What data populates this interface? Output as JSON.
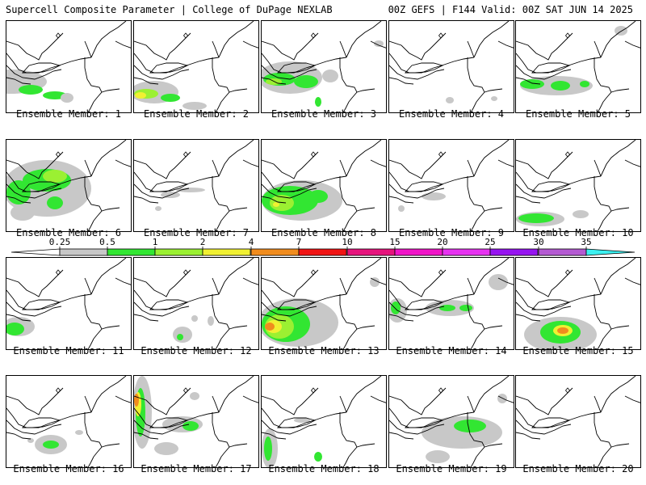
{
  "header": {
    "left": "Supercell Composite Parameter | College of DuPage NEXLAB",
    "right": "00Z GEFS | F144 Valid: 00Z SAT JUN 14 2025"
  },
  "colorbar": {
    "ticks": [
      "0.25",
      "0.5",
      "1",
      "2",
      "4",
      "7",
      "10",
      "15",
      "20",
      "25",
      "30",
      "35"
    ],
    "colors": [
      "#c8c8c8",
      "#32e632",
      "#9bf032",
      "#f0f032",
      "#f08c1e",
      "#f01414",
      "#e6147d",
      "#f014c8",
      "#e632f0",
      "#9614f0",
      "#b45ad2",
      "#3cf0f0"
    ]
  },
  "panels": [
    {
      "label": "Ensemble Member: 1",
      "blobs": [
        {
          "c": 0,
          "x": 5,
          "y": 75,
          "rx": 45,
          "ry": 15
        },
        {
          "c": 1,
          "x": 30,
          "y": 85,
          "rx": 15,
          "ry": 6
        },
        {
          "c": 1,
          "x": 60,
          "y": 92,
          "rx": 15,
          "ry": 5
        },
        {
          "c": 0,
          "x": 75,
          "y": 95,
          "rx": 8,
          "ry": 6
        }
      ]
    },
    {
      "label": "Ensemble Member: 2",
      "blobs": [
        {
          "c": 0,
          "x": 25,
          "y": 88,
          "rx": 30,
          "ry": 14
        },
        {
          "c": 2,
          "x": 15,
          "y": 90,
          "rx": 15,
          "ry": 6
        },
        {
          "c": 3,
          "x": 8,
          "y": 92,
          "rx": 7,
          "ry": 4
        },
        {
          "c": 1,
          "x": 45,
          "y": 95,
          "rx": 12,
          "ry": 5
        },
        {
          "c": 0,
          "x": 75,
          "y": 105,
          "rx": 15,
          "ry": 5
        }
      ]
    },
    {
      "label": "Ensemble Member: 3",
      "blobs": [
        {
          "c": 0,
          "x": 35,
          "y": 70,
          "rx": 40,
          "ry": 20
        },
        {
          "c": 1,
          "x": 22,
          "y": 72,
          "rx": 20,
          "ry": 8
        },
        {
          "c": 2,
          "x": 15,
          "y": 75,
          "rx": 10,
          "ry": 4
        },
        {
          "c": 1,
          "x": 55,
          "y": 75,
          "rx": 15,
          "ry": 8
        },
        {
          "c": 0,
          "x": 85,
          "y": 68,
          "rx": 10,
          "ry": 8
        },
        {
          "c": 1,
          "x": 70,
          "y": 100,
          "rx": 4,
          "ry": 6
        },
        {
          "c": 0,
          "x": 145,
          "y": 28,
          "rx": 6,
          "ry": 4
        }
      ]
    },
    {
      "label": "Ensemble Member: 4",
      "blobs": [
        {
          "c": 0,
          "x": 75,
          "y": 98,
          "rx": 5,
          "ry": 4
        },
        {
          "c": 0,
          "x": 130,
          "y": 96,
          "rx": 4,
          "ry": 3
        }
      ]
    },
    {
      "label": "Ensemble Member: 5",
      "blobs": [
        {
          "c": 0,
          "x": 50,
          "y": 80,
          "rx": 45,
          "ry": 12
        },
        {
          "c": 1,
          "x": 20,
          "y": 78,
          "rx": 15,
          "ry": 6
        },
        {
          "c": 1,
          "x": 55,
          "y": 80,
          "rx": 12,
          "ry": 6
        },
        {
          "c": 1,
          "x": 85,
          "y": 78,
          "rx": 6,
          "ry": 4
        },
        {
          "c": 0,
          "x": 130,
          "y": 12,
          "rx": 8,
          "ry": 6
        }
      ]
    },
    {
      "label": "Ensemble Member: 6",
      "blobs": [
        {
          "c": 0,
          "x": 50,
          "y": 60,
          "rx": 55,
          "ry": 35
        },
        {
          "c": 1,
          "x": 15,
          "y": 65,
          "rx": 15,
          "ry": 15
        },
        {
          "c": 1,
          "x": 50,
          "y": 50,
          "rx": 30,
          "ry": 14
        },
        {
          "c": 2,
          "x": 60,
          "y": 45,
          "rx": 15,
          "ry": 8
        },
        {
          "c": 1,
          "x": 60,
          "y": 78,
          "rx": 10,
          "ry": 8
        },
        {
          "c": 0,
          "x": 20,
          "y": 90,
          "rx": 15,
          "ry": 10
        }
      ]
    },
    {
      "label": "Ensemble Member: 7",
      "blobs": [
        {
          "c": 0,
          "x": 30,
          "y": 85,
          "rx": 4,
          "ry": 3
        },
        {
          "c": 0,
          "x": 45,
          "y": 68,
          "rx": 12,
          "ry": 4
        },
        {
          "c": 0,
          "x": 70,
          "y": 62,
          "rx": 18,
          "ry": 3
        }
      ]
    },
    {
      "label": "Ensemble Member: 8",
      "blobs": [
        {
          "c": 0,
          "x": 50,
          "y": 75,
          "rx": 50,
          "ry": 25
        },
        {
          "c": 1,
          "x": 35,
          "y": 75,
          "rx": 35,
          "ry": 18
        },
        {
          "c": 2,
          "x": 25,
          "y": 78,
          "rx": 15,
          "ry": 10
        },
        {
          "c": 3,
          "x": 18,
          "y": 80,
          "rx": 4,
          "ry": 3
        },
        {
          "c": 1,
          "x": 70,
          "y": 70,
          "rx": 12,
          "ry": 8
        }
      ]
    },
    {
      "label": "Ensemble Member: 9",
      "blobs": [
        {
          "c": 0,
          "x": 15,
          "y": 85,
          "rx": 4,
          "ry": 4
        },
        {
          "c": 0,
          "x": 55,
          "y": 70,
          "rx": 15,
          "ry": 5
        }
      ]
    },
    {
      "label": "Ensemble Member: 10",
      "blobs": [
        {
          "c": 0,
          "x": 30,
          "y": 98,
          "rx": 30,
          "ry": 9
        },
        {
          "c": 1,
          "x": 25,
          "y": 97,
          "rx": 22,
          "ry": 6
        },
        {
          "c": 0,
          "x": 80,
          "y": 92,
          "rx": 10,
          "ry": 5
        }
      ]
    },
    {
      "label": "Ensemble Member: 11",
      "blobs": [
        {
          "c": 0,
          "x": 15,
          "y": 85,
          "rx": 20,
          "ry": 12
        },
        {
          "c": 1,
          "x": 10,
          "y": 88,
          "rx": 12,
          "ry": 8
        }
      ]
    },
    {
      "label": "Ensemble Member: 12",
      "blobs": [
        {
          "c": 0,
          "x": 60,
          "y": 95,
          "rx": 12,
          "ry": 10
        },
        {
          "c": 1,
          "x": 57,
          "y": 98,
          "rx": 4,
          "ry": 4
        },
        {
          "c": 0,
          "x": 95,
          "y": 78,
          "rx": 4,
          "ry": 6
        },
        {
          "c": 0,
          "x": 75,
          "y": 75,
          "rx": 4,
          "ry": 4
        }
      ]
    },
    {
      "label": "Ensemble Member: 13",
      "blobs": [
        {
          "c": 0,
          "x": 45,
          "y": 80,
          "rx": 50,
          "ry": 30
        },
        {
          "c": 1,
          "x": 30,
          "y": 82,
          "rx": 30,
          "ry": 22
        },
        {
          "c": 2,
          "x": 22,
          "y": 85,
          "rx": 18,
          "ry": 15
        },
        {
          "c": 3,
          "x": 15,
          "y": 85,
          "rx": 10,
          "ry": 8
        },
        {
          "c": 4,
          "x": 10,
          "y": 85,
          "rx": 6,
          "ry": 5
        },
        {
          "c": 0,
          "x": 140,
          "y": 30,
          "rx": 6,
          "ry": 6
        }
      ]
    },
    {
      "label": "Ensemble Member: 14",
      "blobs": [
        {
          "c": 0,
          "x": 10,
          "y": 65,
          "rx": 12,
          "ry": 15
        },
        {
          "c": 1,
          "x": 8,
          "y": 62,
          "rx": 6,
          "ry": 8
        },
        {
          "c": 0,
          "x": 75,
          "y": 62,
          "rx": 30,
          "ry": 10
        },
        {
          "c": 1,
          "x": 72,
          "y": 62,
          "rx": 10,
          "ry": 4
        },
        {
          "c": 1,
          "x": 95,
          "y": 62,
          "rx": 8,
          "ry": 4
        },
        {
          "c": 0,
          "x": 135,
          "y": 30,
          "rx": 12,
          "ry": 10
        }
      ]
    },
    {
      "label": "Ensemble Member: 15",
      "blobs": [
        {
          "c": 0,
          "x": 55,
          "y": 95,
          "rx": 45,
          "ry": 22
        },
        {
          "c": 1,
          "x": 55,
          "y": 92,
          "rx": 25,
          "ry": 14
        },
        {
          "c": 3,
          "x": 58,
          "y": 90,
          "rx": 12,
          "ry": 7
        },
        {
          "c": 4,
          "x": 58,
          "y": 90,
          "rx": 7,
          "ry": 4
        }
      ]
    },
    {
      "label": "Ensemble Member: 16",
      "blobs": [
        {
          "c": 0,
          "x": 55,
          "y": 85,
          "rx": 20,
          "ry": 12
        },
        {
          "c": 1,
          "x": 55,
          "y": 85,
          "rx": 10,
          "ry": 5
        },
        {
          "c": 0,
          "x": 30,
          "y": 80,
          "rx": 4,
          "ry": 3
        },
        {
          "c": 0,
          "x": 90,
          "y": 70,
          "rx": 5,
          "ry": 3
        }
      ]
    },
    {
      "label": "Ensemble Member: 17",
      "blobs": [
        {
          "c": 0,
          "x": 10,
          "y": 45,
          "rx": 12,
          "ry": 45
        },
        {
          "c": 1,
          "x": 8,
          "y": 45,
          "rx": 6,
          "ry": 30
        },
        {
          "c": 3,
          "x": 5,
          "y": 35,
          "rx": 4,
          "ry": 15
        },
        {
          "c": 4,
          "x": 3,
          "y": 30,
          "rx": 3,
          "ry": 8
        },
        {
          "c": 0,
          "x": 60,
          "y": 60,
          "rx": 25,
          "ry": 10
        },
        {
          "c": 1,
          "x": 70,
          "y": 62,
          "rx": 10,
          "ry": 6
        },
        {
          "c": 0,
          "x": 40,
          "y": 90,
          "rx": 15,
          "ry": 8
        },
        {
          "c": 0,
          "x": 75,
          "y": 25,
          "rx": 6,
          "ry": 5
        }
      ]
    },
    {
      "label": "Ensemble Member: 18",
      "blobs": [
        {
          "c": 0,
          "x": 10,
          "y": 90,
          "rx": 10,
          "ry": 25
        },
        {
          "c": 1,
          "x": 8,
          "y": 90,
          "rx": 5,
          "ry": 15
        },
        {
          "c": 0,
          "x": 50,
          "y": 55,
          "rx": 10,
          "ry": 3
        },
        {
          "c": 1,
          "x": 70,
          "y": 100,
          "rx": 5,
          "ry": 6
        }
      ]
    },
    {
      "label": "Ensemble Member: 19",
      "blobs": [
        {
          "c": 0,
          "x": 90,
          "y": 70,
          "rx": 50,
          "ry": 20
        },
        {
          "c": 1,
          "x": 100,
          "y": 62,
          "rx": 20,
          "ry": 8
        },
        {
          "c": 0,
          "x": 140,
          "y": 28,
          "rx": 6,
          "ry": 6
        },
        {
          "c": 0,
          "x": 60,
          "y": 100,
          "rx": 15,
          "ry": 8
        }
      ]
    },
    {
      "label": "Ensemble Member: 20",
      "blobs": []
    }
  ]
}
